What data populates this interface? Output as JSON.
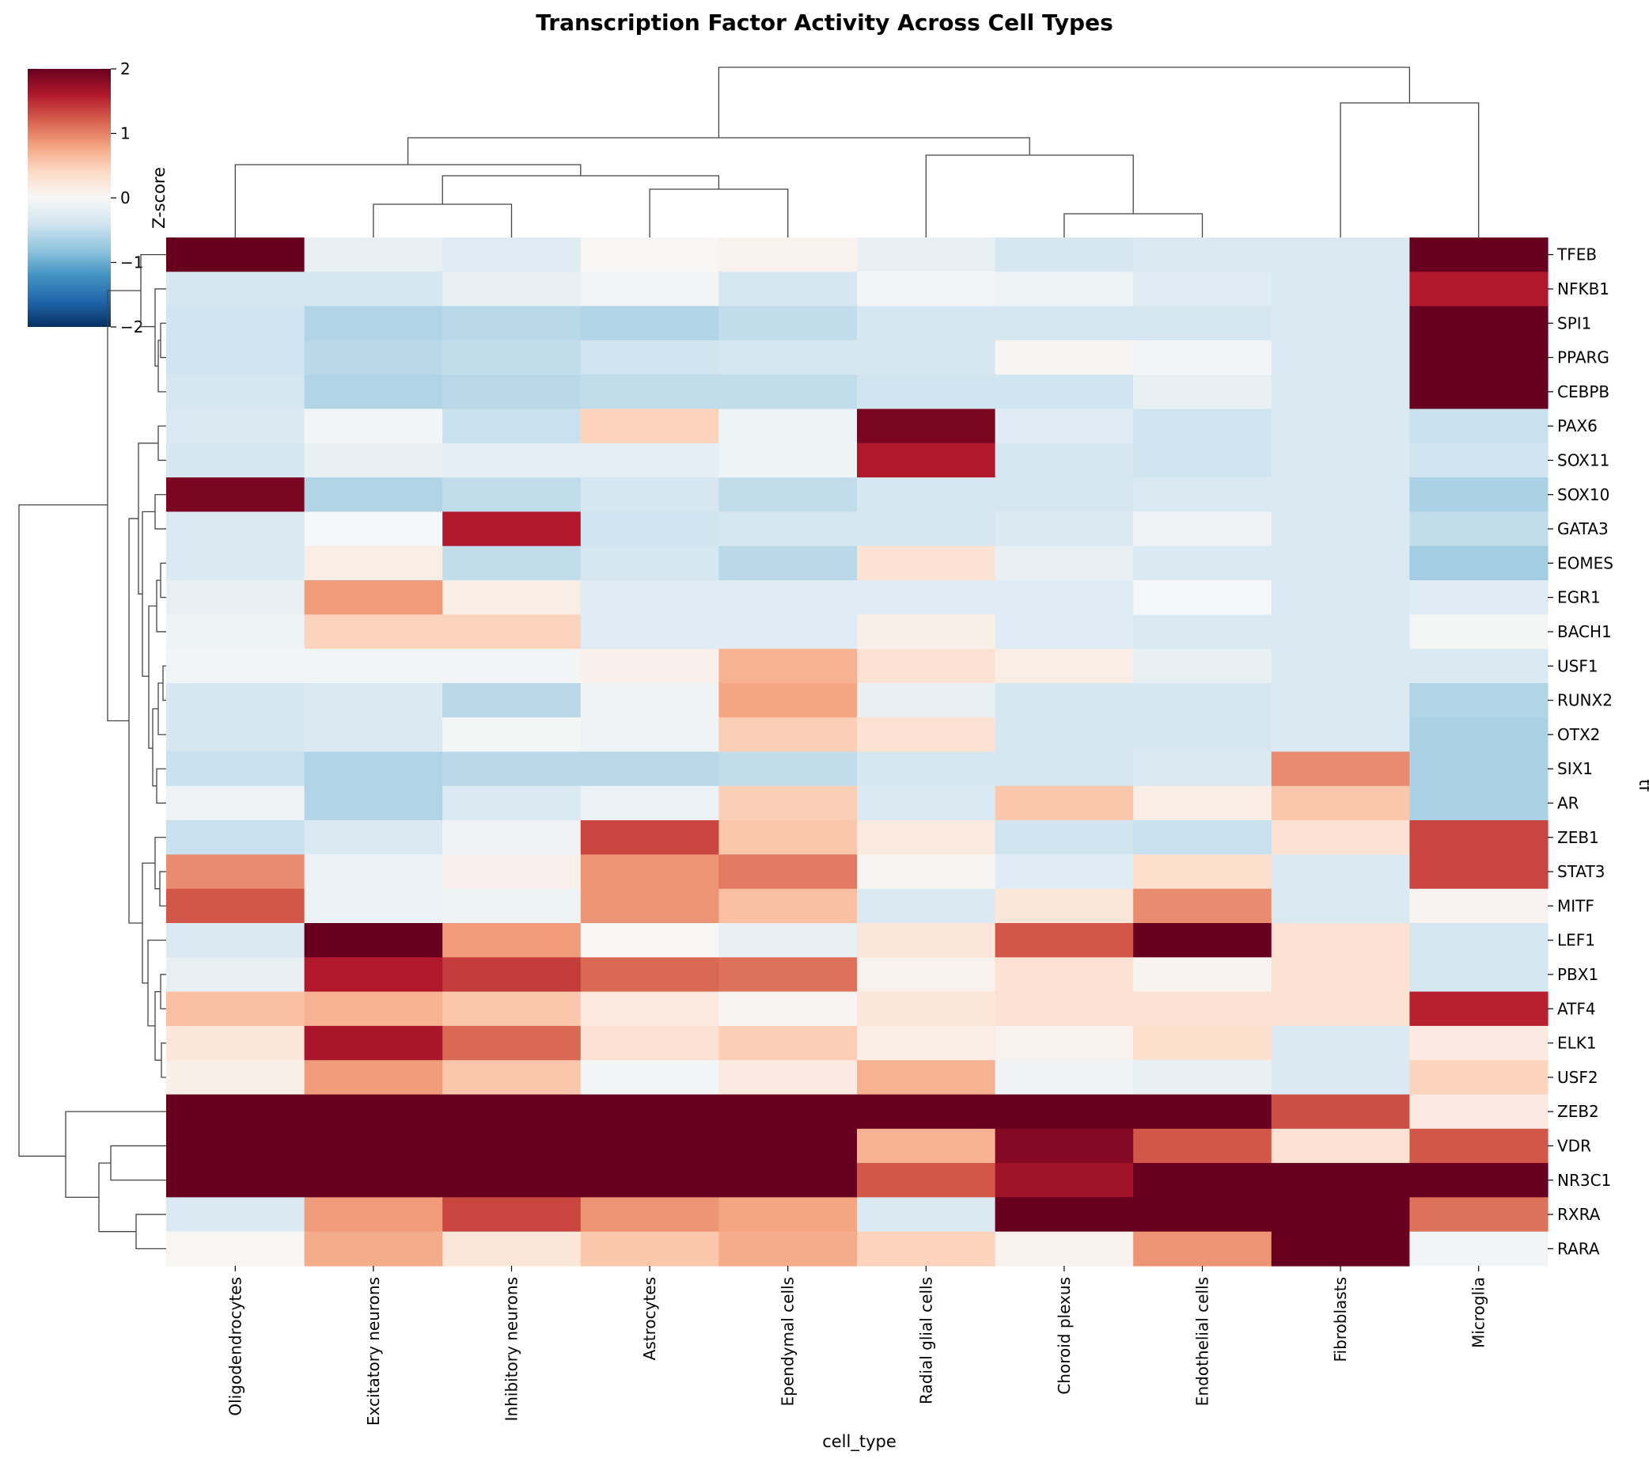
{
  "chart_data": {
    "type": "heatmap",
    "title": "Transcription Factor Activity Across Cell Types",
    "xlabel": "cell_type",
    "ylabel": "tf",
    "colorbar": {
      "label": "Z-score",
      "ticks": [
        "2",
        "1",
        "0",
        "−1",
        "−2"
      ],
      "range": [
        -2,
        2
      ],
      "colormap": "RdBu_r"
    },
    "columns": [
      "Oligodendrocytes",
      "Excitatory neurons",
      "Inhibitory neurons",
      "Astrocytes",
      "Ependymal cells",
      "Radial glial cells",
      "Choroid plexus",
      "Endothelial cells",
      "Fibroblasts",
      "Microglia"
    ],
    "rows": [
      "TFEB",
      "NFKB1",
      "SPI1",
      "PPARG",
      "CEBPB",
      "PAX6",
      "SOX11",
      "SOX10",
      "GATA3",
      "EOMES",
      "EGR1",
      "BACH1",
      "USF1",
      "RUNX2",
      "OTX2",
      "SIX1",
      "AR",
      "ZEB1",
      "STAT3",
      "MITF",
      "LEF1",
      "PBX1",
      "ATF4",
      "ELK1",
      "USF2",
      "ZEB2",
      "VDR",
      "NR3C1",
      "RXRA",
      "RARA"
    ],
    "values": [
      [
        2.2,
        -0.15,
        -0.25,
        0.02,
        0.08,
        -0.15,
        -0.35,
        -0.3,
        -0.3,
        2.2
      ],
      [
        -0.35,
        -0.35,
        -0.15,
        -0.05,
        -0.35,
        -0.05,
        -0.1,
        -0.25,
        -0.3,
        1.6
      ],
      [
        -0.4,
        -0.6,
        -0.55,
        -0.6,
        -0.5,
        -0.35,
        -0.35,
        -0.35,
        -0.3,
        2.2
      ],
      [
        -0.4,
        -0.55,
        -0.5,
        -0.4,
        -0.35,
        -0.35,
        0.03,
        -0.05,
        -0.3,
        2.2
      ],
      [
        -0.35,
        -0.6,
        -0.55,
        -0.5,
        -0.5,
        -0.4,
        -0.4,
        -0.15,
        -0.3,
        2.2
      ],
      [
        -0.3,
        -0.05,
        -0.45,
        0.45,
        -0.1,
        1.9,
        -0.25,
        -0.4,
        -0.3,
        -0.45
      ],
      [
        -0.35,
        -0.15,
        -0.2,
        -0.2,
        -0.1,
        1.6,
        -0.35,
        -0.4,
        -0.3,
        -0.4
      ],
      [
        1.9,
        -0.6,
        -0.5,
        -0.35,
        -0.5,
        -0.35,
        -0.35,
        -0.3,
        -0.3,
        -0.65
      ],
      [
        -0.3,
        -0.02,
        1.6,
        -0.4,
        -0.35,
        -0.35,
        -0.3,
        -0.08,
        -0.3,
        -0.5
      ],
      [
        -0.3,
        0.15,
        -0.5,
        -0.35,
        -0.55,
        0.3,
        -0.15,
        -0.3,
        -0.3,
        -0.7
      ],
      [
        -0.15,
        0.85,
        0.15,
        -0.25,
        -0.25,
        -0.25,
        -0.25,
        -0.02,
        -0.3,
        -0.25
      ],
      [
        -0.1,
        0.45,
        0.45,
        -0.25,
        -0.25,
        0.12,
        -0.25,
        -0.3,
        -0.3,
        -0.03
      ],
      [
        -0.05,
        -0.05,
        -0.05,
        0.1,
        0.7,
        0.3,
        0.15,
        -0.15,
        -0.3,
        -0.3
      ],
      [
        -0.35,
        -0.3,
        -0.55,
        -0.08,
        0.8,
        -0.15,
        -0.35,
        -0.35,
        -0.3,
        -0.6
      ],
      [
        -0.35,
        -0.3,
        -0.03,
        -0.08,
        0.5,
        0.3,
        -0.35,
        -0.35,
        -0.3,
        -0.65
      ],
      [
        -0.45,
        -0.6,
        -0.55,
        -0.55,
        -0.5,
        -0.35,
        -0.35,
        -0.3,
        0.95,
        -0.65
      ],
      [
        -0.08,
        -0.6,
        -0.3,
        -0.12,
        0.5,
        -0.3,
        0.55,
        0.15,
        0.55,
        -0.65
      ],
      [
        -0.45,
        -0.3,
        -0.08,
        1.35,
        0.55,
        0.2,
        -0.4,
        -0.45,
        0.3,
        1.35
      ],
      [
        0.95,
        -0.12,
        0.1,
        0.9,
        1.05,
        0.05,
        -0.25,
        0.35,
        -0.3,
        1.35
      ],
      [
        1.25,
        -0.12,
        -0.1,
        0.9,
        0.6,
        -0.3,
        0.25,
        0.95,
        -0.3,
        0.06
      ],
      [
        -0.3,
        2.2,
        0.85,
        0.02,
        -0.15,
        0.25,
        1.25,
        2.0,
        0.3,
        -0.35
      ],
      [
        -0.15,
        1.6,
        1.4,
        1.15,
        1.1,
        0.08,
        0.3,
        0.06,
        0.3,
        -0.35
      ],
      [
        0.6,
        0.7,
        0.55,
        0.2,
        0.05,
        0.25,
        0.3,
        0.3,
        0.3,
        1.55
      ],
      [
        0.25,
        1.65,
        1.15,
        0.3,
        0.5,
        0.15,
        0.08,
        0.35,
        -0.3,
        0.18
      ],
      [
        0.12,
        0.85,
        0.55,
        -0.05,
        0.18,
        0.7,
        -0.08,
        -0.15,
        -0.3,
        0.45
      ],
      [
        2.2,
        2.2,
        2.2,
        2.2,
        2.2,
        2.2,
        2.2,
        2.2,
        1.3,
        0.18
      ],
      [
        2.2,
        2.2,
        2.2,
        2.2,
        2.2,
        0.7,
        1.85,
        1.25,
        0.3,
        1.25
      ],
      [
        2.2,
        2.2,
        2.2,
        2.2,
        2.2,
        1.25,
        1.7,
        2.2,
        2.2,
        2.2
      ],
      [
        -0.3,
        0.85,
        1.35,
        0.9,
        0.8,
        -0.3,
        2.2,
        2.2,
        2.2,
        1.1
      ],
      [
        0.02,
        0.75,
        0.25,
        0.55,
        0.75,
        0.45,
        0.08,
        0.9,
        2.2,
        -0.05
      ]
    ],
    "grid": false,
    "legend": "colorbar top-left",
    "row_dendrogram": true,
    "column_dendrogram": true
  }
}
